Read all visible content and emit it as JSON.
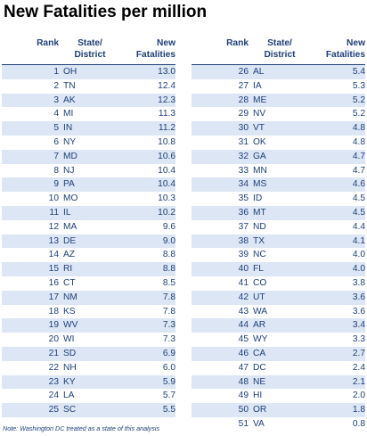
{
  "title": "New Fatalities per million",
  "headers": {
    "rank": "Rank",
    "state_line1": "State/",
    "state_line2": "District",
    "fat_line1": "New",
    "fat_line2": "Fatalities"
  },
  "note": "Note: Washington DC treated as a state of this analysis",
  "chart_data": {
    "type": "table",
    "title": "New Fatalities per million",
    "columns": [
      "Rank",
      "State/District",
      "New Fatalities"
    ],
    "rows": [
      [
        1,
        "OH",
        "13.0"
      ],
      [
        2,
        "TN",
        "12.4"
      ],
      [
        3,
        "AK",
        "12.3"
      ],
      [
        4,
        "MI",
        "11.3"
      ],
      [
        5,
        "IN",
        "11.2"
      ],
      [
        6,
        "NY",
        "10.8"
      ],
      [
        7,
        "MD",
        "10.6"
      ],
      [
        8,
        "NJ",
        "10.4"
      ],
      [
        9,
        "PA",
        "10.4"
      ],
      [
        10,
        "MO",
        "10.3"
      ],
      [
        11,
        "IL",
        "10.2"
      ],
      [
        12,
        "MA",
        "9.6"
      ],
      [
        13,
        "DE",
        "9.0"
      ],
      [
        14,
        "AZ",
        "8.8"
      ],
      [
        15,
        "RI",
        "8.8"
      ],
      [
        16,
        "CT",
        "8.5"
      ],
      [
        17,
        "NM",
        "7.8"
      ],
      [
        18,
        "KS",
        "7.8"
      ],
      [
        19,
        "WV",
        "7.3"
      ],
      [
        20,
        "WI",
        "7.3"
      ],
      [
        21,
        "SD",
        "6.9"
      ],
      [
        22,
        "NH",
        "6.0"
      ],
      [
        23,
        "KY",
        "5.9"
      ],
      [
        24,
        "LA",
        "5.7"
      ],
      [
        25,
        "SC",
        "5.5"
      ],
      [
        26,
        "AL",
        "5.4"
      ],
      [
        27,
        "IA",
        "5.3"
      ],
      [
        28,
        "ME",
        "5.2"
      ],
      [
        29,
        "NV",
        "5.2"
      ],
      [
        30,
        "VT",
        "4.8"
      ],
      [
        31,
        "OK",
        "4.8"
      ],
      [
        32,
        "GA",
        "4.7"
      ],
      [
        33,
        "MN",
        "4.7"
      ],
      [
        34,
        "MS",
        "4.6"
      ],
      [
        35,
        "ID",
        "4.5"
      ],
      [
        36,
        "MT",
        "4.5"
      ],
      [
        37,
        "ND",
        "4.4"
      ],
      [
        38,
        "TX",
        "4.1"
      ],
      [
        39,
        "NC",
        "4.0"
      ],
      [
        40,
        "FL",
        "4.0"
      ],
      [
        41,
        "CO",
        "3.8"
      ],
      [
        42,
        "UT",
        "3.6"
      ],
      [
        43,
        "WA",
        "3.6"
      ],
      [
        44,
        "AR",
        "3.4"
      ],
      [
        45,
        "WY",
        "3.3"
      ],
      [
        46,
        "CA",
        "2.7"
      ],
      [
        47,
        "DC",
        "2.4"
      ],
      [
        48,
        "NE",
        "2.1"
      ],
      [
        49,
        "HI",
        "2.0"
      ],
      [
        50,
        "OR",
        "1.8"
      ],
      [
        51,
        "VA",
        "0.8"
      ]
    ],
    "accent_colors": {
      "text": "#1f3f7a",
      "band": "#dce6f4",
      "title": "#000000"
    }
  }
}
